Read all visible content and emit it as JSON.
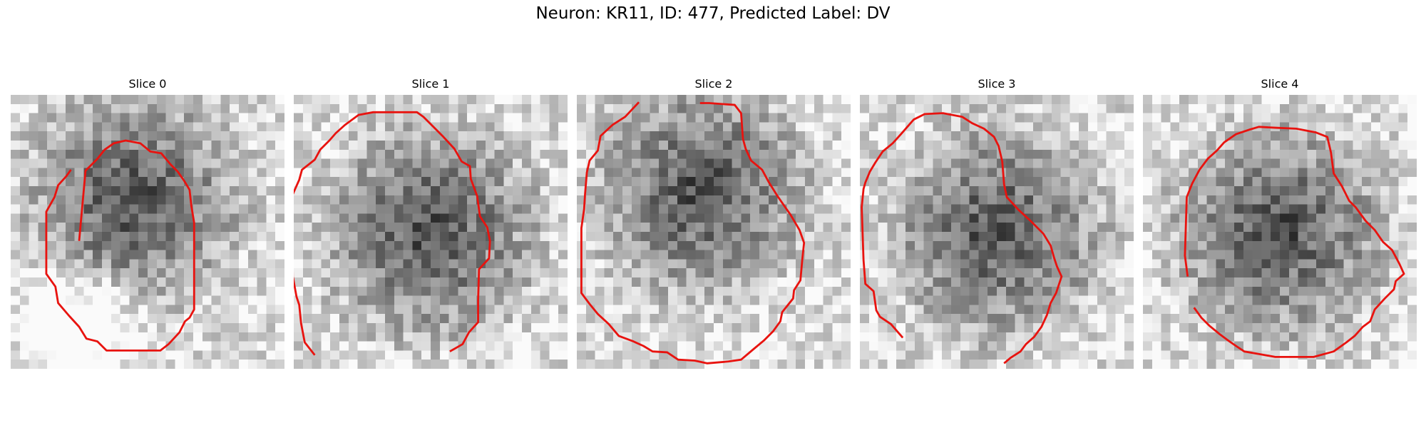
{
  "figure": {
    "title": "Neuron: KR11, ID: 477, Predicted Label: DV"
  },
  "panels": [
    {
      "title": "Slice 0",
      "seed": 11,
      "dark_center": [
        0.45,
        0.38
      ],
      "light_region": [
        0.25,
        0.85
      ]
    },
    {
      "title": "Slice 1",
      "seed": 23,
      "dark_center": [
        0.5,
        0.5
      ],
      "light_region": null
    },
    {
      "title": "Slice 2",
      "seed": 37,
      "dark_center": [
        0.45,
        0.35
      ],
      "light_region": null
    },
    {
      "title": "Slice 3",
      "seed": 49,
      "dark_center": [
        0.5,
        0.5
      ],
      "light_region": null
    },
    {
      "title": "Slice 4",
      "seed": 61,
      "dark_center": [
        0.5,
        0.5
      ],
      "light_region": null
    }
  ],
  "colors": {
    "contour": "#e8130f"
  }
}
